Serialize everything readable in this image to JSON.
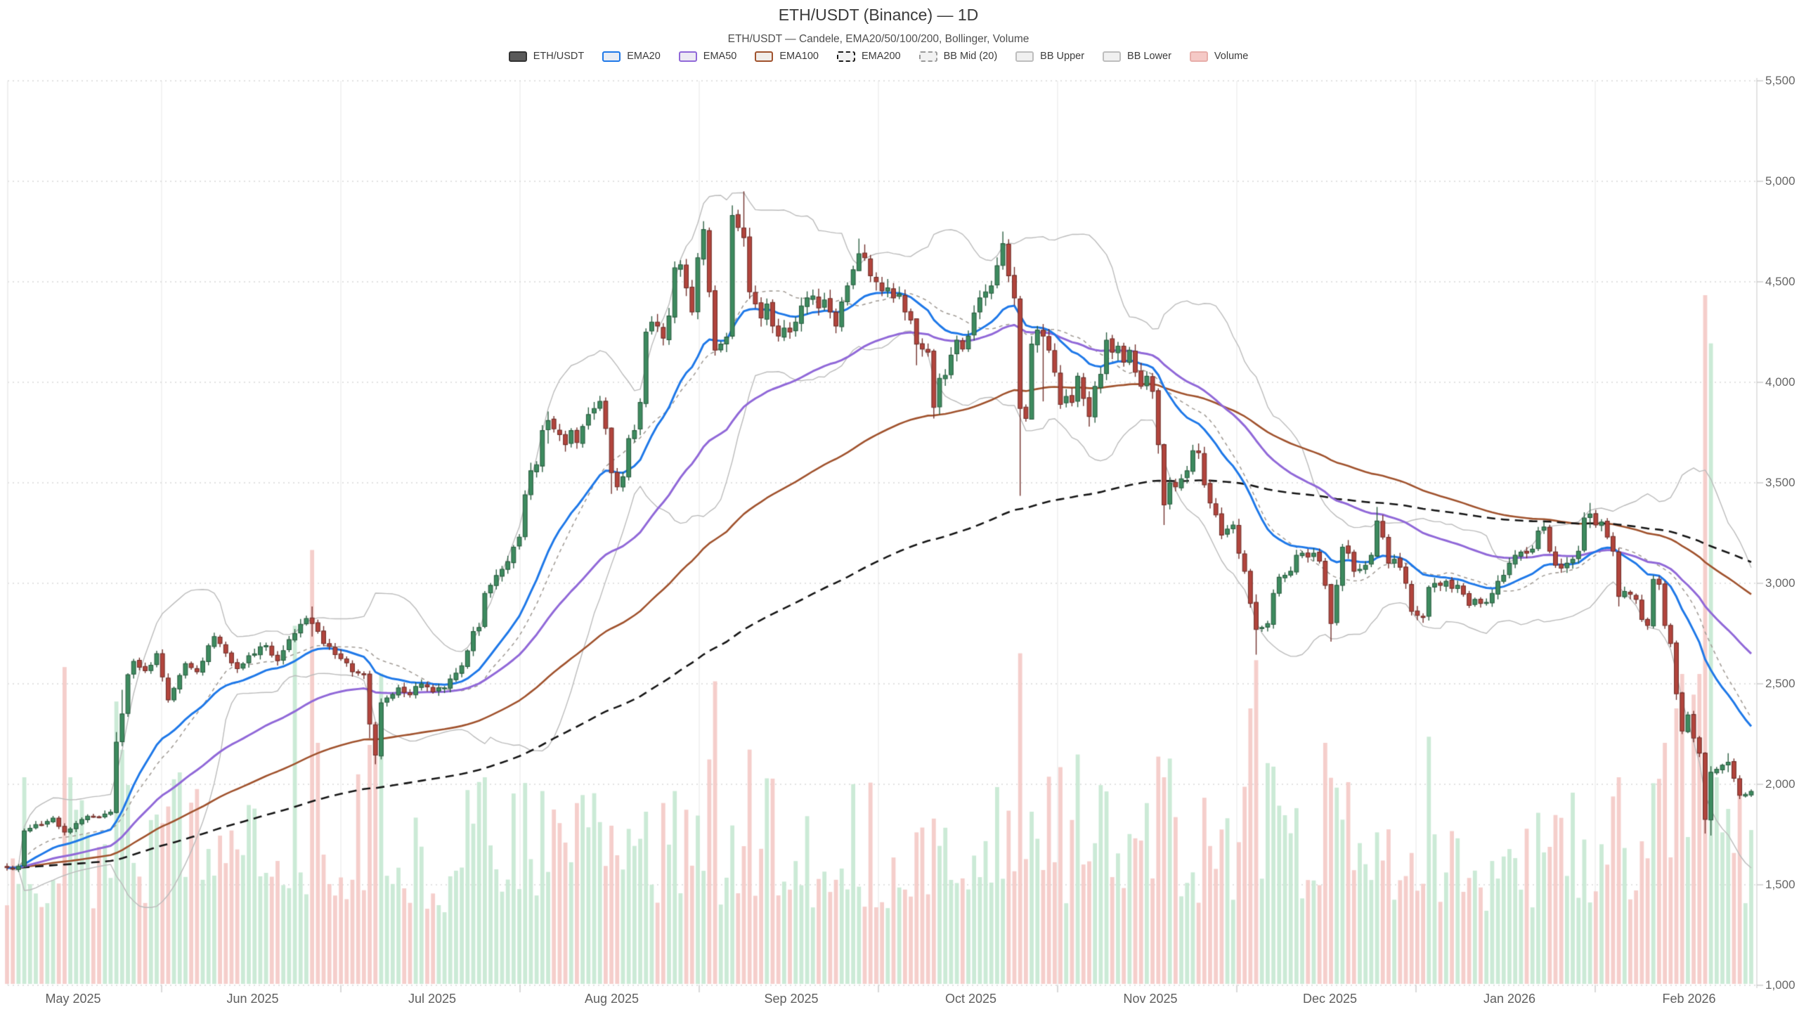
{
  "header": {
    "title": "ETH/USDT (Binance) — 1D",
    "subtitle": "ETH/USDT — Candele, EMA20/50/100/200, Bollinger, Volume"
  },
  "legend": {
    "items": [
      {
        "label": "ETH/USDT",
        "swatch": {
          "fill": "#5a5a5a",
          "border": "#333333",
          "dash": false
        }
      },
      {
        "label": "EMA20",
        "swatch": {
          "fill": "#e9edf4",
          "border": "#1e78e8",
          "dash": false
        }
      },
      {
        "label": "EMA50",
        "swatch": {
          "fill": "#edeaf4",
          "border": "#9068d8",
          "dash": false
        }
      },
      {
        "label": "EMA100",
        "swatch": {
          "fill": "#f1ede9",
          "border": "#a0522d",
          "dash": false
        }
      },
      {
        "label": "EMA200",
        "swatch": {
          "fill": "#f2f2f2",
          "border": "#1a1a1a",
          "dash": true
        }
      },
      {
        "label": "BB Mid (20)",
        "swatch": {
          "fill": "#f2f2f2",
          "border": "#9a9a9a",
          "dash": true
        }
      },
      {
        "label": "BB Upper",
        "swatch": {
          "fill": "#f0f0f0",
          "border": "#bdbdbd",
          "dash": false
        }
      },
      {
        "label": "BB Lower",
        "swatch": {
          "fill": "#f0f0f0",
          "border": "#bdbdbd",
          "dash": false
        }
      },
      {
        "label": "Volume",
        "swatch": {
          "fill": "#f5c9c6",
          "border": "#e7aeaa",
          "dash": false
        }
      }
    ]
  },
  "colors": {
    "up_body": "#3d8b5f",
    "up_edge": "#2b5e41",
    "down_body": "#b2443c",
    "down_edge": "#71302b",
    "vol_up": "#c5e8d2",
    "vol_down": "#f4c9c5",
    "ema20": "#1e78e8",
    "ema50": "#9068d8",
    "ema100": "#a0522d",
    "ema200": "#151515",
    "bb_band": "#bbbbbb",
    "bb_mid": "#a39d97",
    "grid_h": "#d8d8d8",
    "grid_v": "#ededed",
    "spine": "#d6d6d6",
    "tick": "#c9c9c9"
  },
  "chart_data": {
    "type": "candlestick",
    "title": "ETH/USDT (Binance) — 1D",
    "subtitle": "ETH/USDT — Candele, EMA20/50/100/200, Bollinger, Volume",
    "symbol": "ETH/USDT",
    "exchange": "Binance",
    "timeframe": "1D",
    "grid": true,
    "legend_position": "top-center",
    "y_axis": {
      "side": "right",
      "range": [
        1000,
        5500
      ],
      "ticks": [
        5500,
        5000,
        4500,
        4000,
        3500,
        3000,
        2500,
        2000,
        1500,
        1000
      ],
      "labels": [
        "5,500",
        "5,000",
        "4,500",
        "4,000",
        "3,500",
        "3,000",
        "2,500",
        "2,000",
        "1,500",
        "1,000"
      ]
    },
    "x_axis": {
      "month_labels": [
        "May 2025",
        "Jun 2025",
        "Jul 2025",
        "Aug 2025",
        "Sep 2025",
        "Oct 2025",
        "Nov 2025",
        "Dec 2025",
        "Jan 2026",
        "Feb 2026"
      ],
      "span_days": 304
    },
    "indicators": {
      "ema_periods": [
        20,
        50,
        100,
        200
      ],
      "bollinger": {
        "period": 20,
        "stddev_mult": 2,
        "series": [
          "BB Mid (20)",
          "BB Upper",
          "BB Lower"
        ]
      },
      "volume": true
    },
    "candles": {
      "count": 304,
      "price_start": 1585,
      "price_peak": 4950,
      "price_end": 1965,
      "close_anchors": [
        [
          0,
          1585
        ],
        [
          1,
          1578
        ],
        [
          2,
          1592
        ],
        [
          3,
          1768
        ],
        [
          5,
          1800
        ],
        [
          7,
          1815
        ],
        [
          8,
          1832
        ],
        [
          9,
          1790
        ],
        [
          10,
          1762
        ],
        [
          11,
          1778
        ],
        [
          13,
          1825
        ],
        [
          15,
          1840
        ],
        [
          17,
          1852
        ],
        [
          18,
          1862
        ],
        [
          19,
          2210
        ],
        [
          20,
          2350
        ],
        [
          21,
          2545
        ],
        [
          22,
          2612
        ],
        [
          24,
          2565
        ],
        [
          26,
          2650
        ],
        [
          28,
          2420
        ],
        [
          31,
          2600
        ],
        [
          33,
          2560
        ],
        [
          36,
          2735
        ],
        [
          37,
          2700
        ],
        [
          40,
          2575
        ],
        [
          42,
          2640
        ],
        [
          45,
          2690
        ],
        [
          47,
          2615
        ],
        [
          50,
          2750
        ],
        [
          52,
          2825
        ],
        [
          53,
          2800
        ],
        [
          55,
          2700
        ],
        [
          57,
          2645
        ],
        [
          58,
          2625
        ],
        [
          60,
          2560
        ],
        [
          62,
          2545
        ],
        [
          63,
          2300
        ],
        [
          64,
          2145
        ],
        [
          65,
          2405
        ],
        [
          66,
          2430
        ],
        [
          68,
          2480
        ],
        [
          70,
          2445
        ],
        [
          72,
          2500
        ],
        [
          74,
          2460
        ],
        [
          76,
          2480
        ],
        [
          79,
          2590
        ],
        [
          81,
          2760
        ],
        [
          82,
          2780
        ],
        [
          83,
          2950
        ],
        [
          84,
          2990
        ],
        [
          86,
          3070
        ],
        [
          88,
          3180
        ],
        [
          89,
          3230
        ],
        [
          90,
          3440
        ],
        [
          91,
          3560
        ],
        [
          92,
          3590
        ],
        [
          93,
          3760
        ],
        [
          94,
          3810
        ],
        [
          96,
          3740
        ],
        [
          97,
          3690
        ],
        [
          98,
          3760
        ],
        [
          99,
          3700
        ],
        [
          100,
          3780
        ],
        [
          102,
          3870
        ],
        [
          103,
          3905
        ],
        [
          104,
          3770
        ],
        [
          105,
          3550
        ],
        [
          106,
          3480
        ],
        [
          107,
          3530
        ],
        [
          108,
          3720
        ],
        [
          109,
          3760
        ],
        [
          110,
          3900
        ],
        [
          111,
          4250
        ],
        [
          112,
          4300
        ],
        [
          113,
          4280
        ],
        [
          114,
          4220
        ],
        [
          115,
          4330
        ],
        [
          116,
          4570
        ],
        [
          117,
          4585
        ],
        [
          118,
          4470
        ],
        [
          119,
          4350
        ],
        [
          120,
          4620
        ],
        [
          121,
          4760
        ],
        [
          122,
          4450
        ],
        [
          123,
          4160
        ],
        [
          124,
          4190
        ],
        [
          125,
          4225
        ],
        [
          126,
          4830
        ],
        [
          127,
          4770
        ],
        [
          128,
          4720
        ],
        [
          129,
          4450
        ],
        [
          130,
          4390
        ],
        [
          131,
          4320
        ],
        [
          132,
          4390
        ],
        [
          133,
          4280
        ],
        [
          134,
          4230
        ],
        [
          135,
          4270
        ],
        [
          136,
          4250
        ],
        [
          137,
          4300
        ],
        [
          138,
          4380
        ],
        [
          139,
          4420
        ],
        [
          140,
          4430
        ],
        [
          141,
          4370
        ],
        [
          142,
          4410
        ],
        [
          143,
          4350
        ],
        [
          144,
          4280
        ],
        [
          145,
          4400
        ],
        [
          146,
          4480
        ],
        [
          147,
          4560
        ],
        [
          148,
          4640
        ],
        [
          149,
          4620
        ],
        [
          150,
          4530
        ],
        [
          151,
          4500
        ],
        [
          152,
          4455
        ],
        [
          153,
          4470
        ],
        [
          154,
          4420
        ],
        [
          155,
          4440
        ],
        [
          156,
          4350
        ],
        [
          157,
          4310
        ],
        [
          158,
          4190
        ],
        [
          159,
          4165
        ],
        [
          160,
          4150
        ],
        [
          161,
          3875
        ],
        [
          162,
          4020
        ],
        [
          163,
          4035
        ],
        [
          164,
          4135
        ],
        [
          165,
          4210
        ],
        [
          166,
          4165
        ],
        [
          167,
          4230
        ],
        [
          168,
          4345
        ],
        [
          169,
          4420
        ],
        [
          170,
          4450
        ],
        [
          171,
          4480
        ],
        [
          172,
          4580
        ],
        [
          173,
          4690
        ],
        [
          174,
          4530
        ],
        [
          175,
          4420
        ],
        [
          176,
          3870
        ],
        [
          177,
          3820
        ],
        [
          178,
          4190
        ],
        [
          179,
          4260
        ],
        [
          180,
          4230
        ],
        [
          181,
          4160
        ],
        [
          182,
          4050
        ],
        [
          183,
          3890
        ],
        [
          184,
          3930
        ],
        [
          185,
          3900
        ],
        [
          186,
          4030
        ],
        [
          187,
          3920
        ],
        [
          188,
          3830
        ],
        [
          189,
          3980
        ],
        [
          190,
          4040
        ],
        [
          191,
          4210
        ],
        [
          192,
          4150
        ],
        [
          193,
          4180
        ],
        [
          194,
          4100
        ],
        [
          195,
          4160
        ],
        [
          196,
          4050
        ],
        [
          197,
          3980
        ],
        [
          198,
          4030
        ],
        [
          199,
          3955
        ],
        [
          200,
          3690
        ],
        [
          201,
          3390
        ],
        [
          202,
          3500
        ],
        [
          203,
          3480
        ],
        [
          204,
          3520
        ],
        [
          205,
          3560
        ],
        [
          206,
          3660
        ],
        [
          207,
          3650
        ],
        [
          208,
          3490
        ],
        [
          209,
          3400
        ],
        [
          210,
          3340
        ],
        [
          211,
          3240
        ],
        [
          212,
          3270
        ],
        [
          213,
          3290
        ],
        [
          214,
          3150
        ],
        [
          215,
          3060
        ],
        [
          216,
          2900
        ],
        [
          217,
          2770
        ],
        [
          218,
          2780
        ],
        [
          219,
          2800
        ],
        [
          220,
          2950
        ],
        [
          221,
          3030
        ],
        [
          222,
          3040
        ],
        [
          223,
          3060
        ],
        [
          224,
          3140
        ],
        [
          225,
          3150
        ],
        [
          226,
          3130
        ],
        [
          227,
          3150
        ],
        [
          228,
          3110
        ],
        [
          229,
          2990
        ],
        [
          230,
          2800
        ],
        [
          231,
          2990
        ],
        [
          232,
          3180
        ],
        [
          233,
          3150
        ],
        [
          234,
          3060
        ],
        [
          235,
          3070
        ],
        [
          236,
          3090
        ],
        [
          237,
          3140
        ],
        [
          238,
          3310
        ],
        [
          239,
          3230
        ],
        [
          240,
          3100
        ],
        [
          241,
          3120
        ],
        [
          242,
          3080
        ],
        [
          243,
          3000
        ],
        [
          244,
          2860
        ],
        [
          245,
          2840
        ],
        [
          246,
          2830
        ],
        [
          247,
          2980
        ],
        [
          248,
          3000
        ],
        [
          249,
          2990
        ],
        [
          250,
          3010
        ],
        [
          251,
          2975
        ],
        [
          252,
          2990
        ],
        [
          253,
          2945
        ],
        [
          254,
          2890
        ],
        [
          255,
          2920
        ],
        [
          256,
          2900
        ],
        [
          257,
          2905
        ],
        [
          258,
          2950
        ],
        [
          259,
          3010
        ],
        [
          260,
          3040
        ],
        [
          261,
          3100
        ],
        [
          262,
          3140
        ],
        [
          263,
          3155
        ],
        [
          264,
          3150
        ],
        [
          265,
          3170
        ],
        [
          266,
          3260
        ],
        [
          267,
          3280
        ],
        [
          268,
          3160
        ],
        [
          269,
          3090
        ],
        [
          270,
          3075
        ],
        [
          271,
          3100
        ],
        [
          272,
          3120
        ],
        [
          273,
          3160
        ],
        [
          274,
          3325
        ],
        [
          275,
          3345
        ],
        [
          276,
          3290
        ],
        [
          277,
          3305
        ],
        [
          278,
          3230
        ],
        [
          279,
          3160
        ],
        [
          280,
          2935
        ],
        [
          281,
          2960
        ],
        [
          282,
          2945
        ],
        [
          283,
          2920
        ],
        [
          284,
          2820
        ],
        [
          285,
          2790
        ],
        [
          286,
          3020
        ],
        [
          287,
          2995
        ],
        [
          288,
          2790
        ],
        [
          289,
          2700
        ],
        [
          290,
          2450
        ],
        [
          291,
          2265
        ],
        [
          292,
          2345
        ],
        [
          293,
          2230
        ],
        [
          294,
          2155
        ],
        [
          295,
          1825
        ],
        [
          296,
          2060
        ],
        [
          297,
          2075
        ],
        [
          298,
          2095
        ],
        [
          299,
          2110
        ],
        [
          300,
          2030
        ],
        [
          301,
          1945
        ],
        [
          302,
          1950
        ],
        [
          303,
          1965
        ]
      ],
      "wick_overrides": {
        "19": [
          2260,
          1855
        ],
        "20": [
          2470,
          2190
        ],
        "53": [
          2885,
          2735
        ],
        "63": [
          2565,
          2230
        ],
        "64": [
          2310,
          2100
        ],
        "91": [
          3600,
          3415
        ],
        "94": [
          3855,
          3695
        ],
        "105": [
          3775,
          3445
        ],
        "126": [
          4880,
          4215
        ],
        "128": [
          4950,
          4675
        ],
        "148": [
          4715,
          4555
        ],
        "158": [
          4260,
          4085
        ],
        "161": [
          4165,
          3820
        ],
        "173": [
          4750,
          4560
        ],
        "176": [
          4430,
          3435
        ],
        "178": [
          4230,
          3815
        ],
        "180": [
          4290,
          3905
        ],
        "188": [
          3955,
          3780
        ],
        "200": [
          3970,
          3645
        ],
        "201": [
          3695,
          3290
        ],
        "217": [
          2945,
          2645
        ],
        "230": [
          2995,
          2710
        ],
        "238": [
          3380,
          3130
        ],
        "275": [
          3400,
          3275
        ],
        "280": [
          3175,
          2885
        ],
        "290": [
          2715,
          2420
        ],
        "291": [
          2460,
          2250
        ],
        "295": [
          2160,
          1755
        ],
        "296": [
          2090,
          1745
        ],
        "299": [
          2155,
          2060
        ]
      },
      "volume_overrides": {
        "3": 0.3,
        "10": 0.46,
        "11": 0.3,
        "19": 0.41,
        "20": 0.34,
        "50": 0.52,
        "53": 0.63,
        "54": 0.35,
        "64": 0.38,
        "83": 0.3,
        "93": 0.28,
        "111": 0.25,
        "116": 0.28,
        "126": 0.23,
        "128": 0.2,
        "158": 0.22,
        "161": 0.24,
        "176": 0.48,
        "178": 0.25,
        "200": 0.33,
        "201": 0.3,
        "216": 0.4,
        "217": 0.47,
        "229": 0.35,
        "238": 0.22,
        "280": 0.3,
        "288": 0.35,
        "290": 0.4,
        "291": 0.45,
        "293": 0.42,
        "294": 0.45,
        "295": 1.0,
        "296": 0.93,
        "297": 0.3,
        "298": 0.22,
        "301": 0.28
      }
    }
  }
}
